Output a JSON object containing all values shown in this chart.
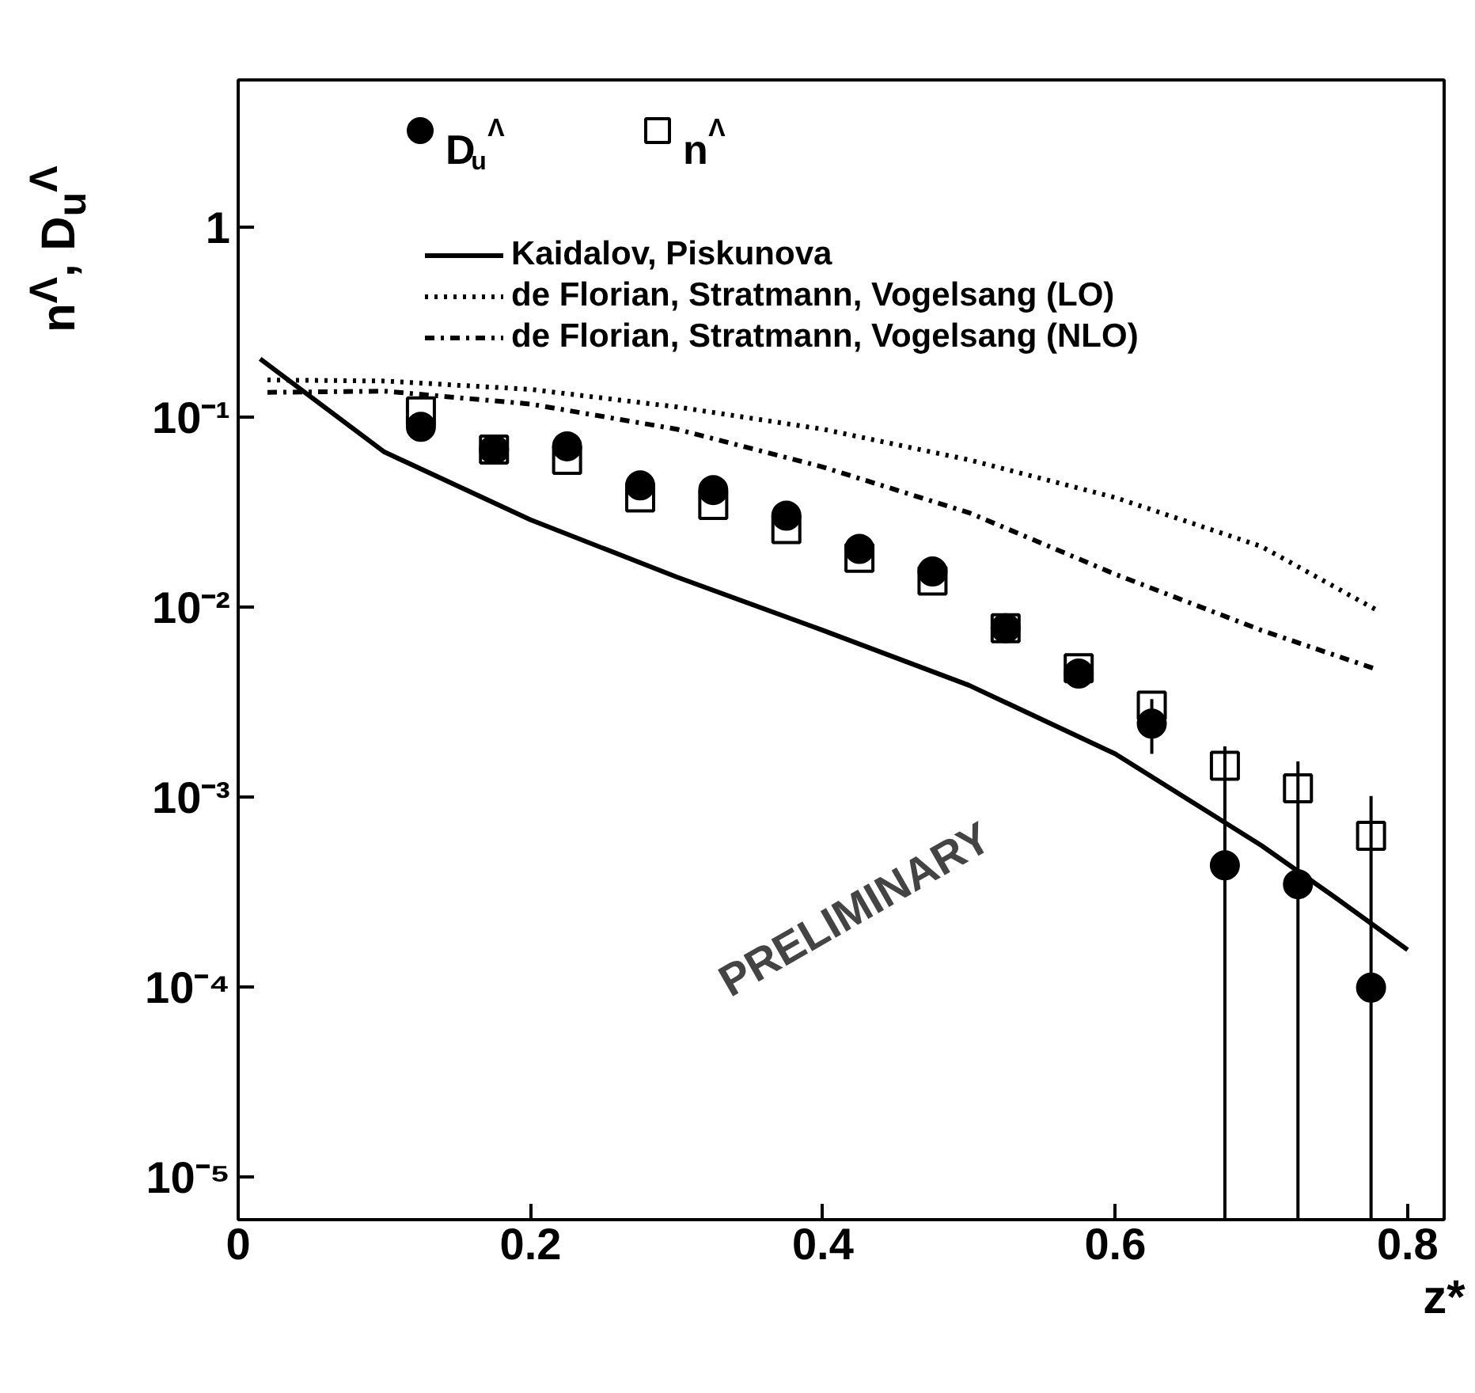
{
  "chart_data": {
    "type": "scatter",
    "xlabel": "z*",
    "ylabel": "n$^{Λ}$, D$_{u}$$^{Λ}$",
    "xlim": [
      0,
      0.825
    ],
    "ylim": [
      6e-06,
      6
    ],
    "xticks": [
      0,
      0.2,
      0.4,
      0.6,
      0.8
    ],
    "yticks": [
      {
        "value": 1e-05,
        "label": "10⁻⁵"
      },
      {
        "value": 0.0001,
        "label": "10⁻⁴"
      },
      {
        "value": 0.001,
        "label": "10⁻³"
      },
      {
        "value": 0.01,
        "label": "10⁻²"
      },
      {
        "value": 0.1,
        "label": "10⁻¹"
      },
      1
    ],
    "log": "y",
    "grid": false,
    "legend": "top",
    "annotations": [
      "PRELIMINARY"
    ],
    "series": [
      {
        "name": "D$_{u}$$^{Λ}$",
        "marker": "circle",
        "color": "#000000",
        "x": [
          0.125,
          0.175,
          0.225,
          0.275,
          0.325,
          0.375,
          0.425,
          0.475,
          0.525,
          0.575,
          0.625,
          0.675,
          0.725,
          0.775
        ],
        "values": [
          0.0895,
          0.068,
          0.0707,
          0.044,
          0.0416,
          0.0305,
          0.0204,
          0.0155,
          0.0078,
          0.0045,
          0.00245,
          0.00044,
          0.00035,
          0.0001
        ],
        "errors": [
          null,
          null,
          null,
          null,
          null,
          null,
          null,
          null,
          null,
          [
            0.0038,
            0.0052
          ],
          [
            0.0017,
            0.0033
          ],
          [
            6e-06,
            0.00186
          ],
          [
            6e-06,
            0.00155
          ],
          [
            6e-06,
            0.00102
          ]
        ]
      },
      {
        "name": "n$^{Λ}$",
        "marker": "square",
        "color": "#000000",
        "x": [
          0.125,
          0.175,
          0.225,
          0.275,
          0.325,
          0.375,
          0.425,
          0.475,
          0.525,
          0.575,
          0.625,
          0.675,
          0.725,
          0.775
        ],
        "values": [
          0.108,
          0.068,
          0.06,
          0.038,
          0.0347,
          0.0259,
          0.0183,
          0.0139,
          0.0078,
          0.0048,
          0.00305,
          0.00147,
          0.00112,
          0.00063
        ]
      },
      {
        "name": "Kaidalov, Piskunova",
        "type": "line",
        "line_style": "solid",
        "color": "#000000",
        "x": [
          0.015,
          0.1,
          0.2,
          0.3,
          0.4,
          0.5,
          0.6,
          0.7,
          0.75,
          0.8
        ],
        "values": [
          0.204,
          0.066,
          0.029,
          0.0145,
          0.0076,
          0.0039,
          0.0017,
          0.00056,
          0.0003,
          0.000158
        ]
      },
      {
        "name": "de Florian, Stratmann, Vogelsang (LO)",
        "type": "line",
        "line_style": "dotted",
        "color": "#000000",
        "x": [
          0.02,
          0.1,
          0.2,
          0.3,
          0.4,
          0.5,
          0.6,
          0.7,
          0.78
        ],
        "values": [
          0.158,
          0.156,
          0.141,
          0.114,
          0.087,
          0.06,
          0.038,
          0.021,
          0.0096
        ]
      },
      {
        "name": "de Florian, Stratmann, Vogelsang (NLO)",
        "type": "line",
        "line_style": "dashed",
        "color": "#000000",
        "x": [
          0.02,
          0.1,
          0.2,
          0.3,
          0.4,
          0.5,
          0.6,
          0.7,
          0.78
        ],
        "values": [
          0.136,
          0.138,
          0.118,
          0.087,
          0.055,
          0.0316,
          0.015,
          0.0076,
          0.0047
        ]
      }
    ]
  }
}
